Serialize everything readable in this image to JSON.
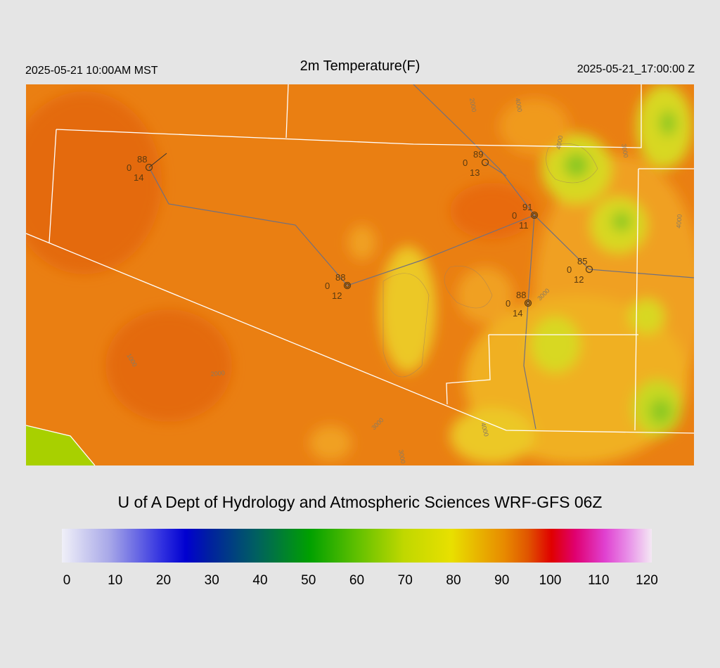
{
  "header": {
    "left": "2025-05-21 10:00AM MST",
    "title": "2m Temperature(F)",
    "right": "2025-05-21_17:00:00 Z"
  },
  "stations": [
    {
      "top": "88",
      "left": "0",
      "bottom": "14"
    },
    {
      "top": "89",
      "left": "0",
      "bottom": "13"
    },
    {
      "top": "91",
      "left": "0",
      "bottom": "11"
    },
    {
      "top": "85",
      "left": "0",
      "bottom": "12"
    },
    {
      "top": "88",
      "left": "0",
      "bottom": "12"
    },
    {
      "top": "88",
      "left": "0",
      "bottom": "14"
    }
  ],
  "contour_labels": [
    "2000",
    "4000",
    "4000",
    "3000",
    "4000",
    "3000",
    "1000",
    "2000",
    "3000",
    "3000",
    "4000"
  ],
  "credit": "U of A Dept of Hydrology and Atmospheric Sciences WRF-GFS 06Z",
  "colorbar": {
    "ticks": [
      "0",
      "10",
      "20",
      "30",
      "40",
      "50",
      "60",
      "70",
      "80",
      "90",
      "100",
      "110",
      "120"
    ]
  }
}
